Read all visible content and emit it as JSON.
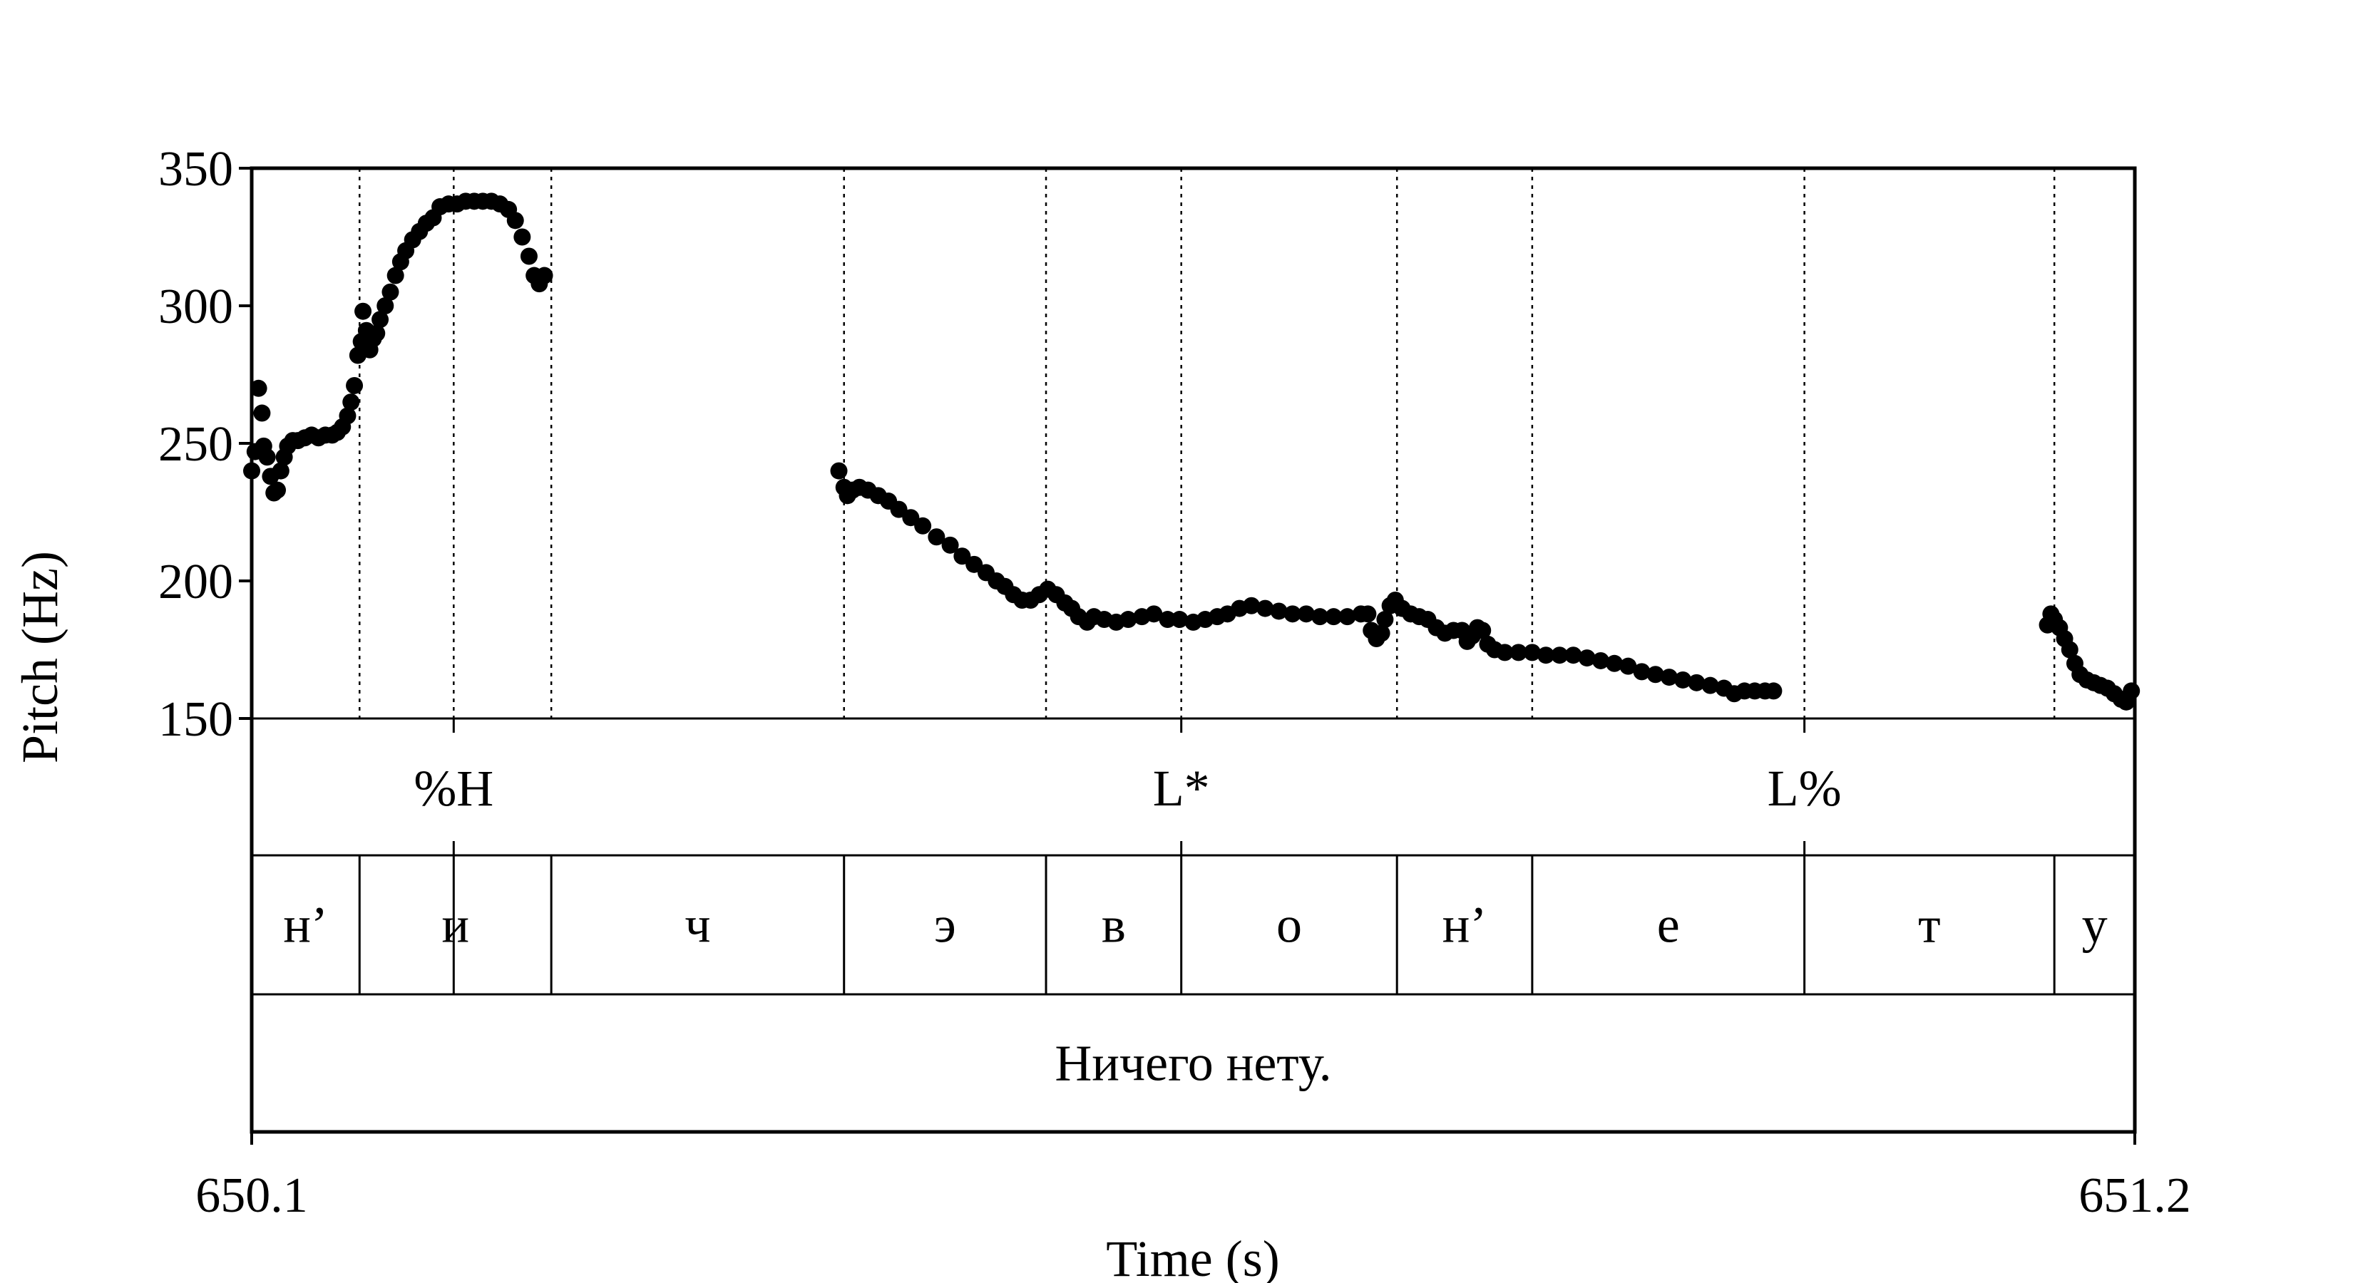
{
  "chart_data": {
    "type": "scatter",
    "xlabel": "Time (s)",
    "ylabel": "Pitch (Hz)",
    "xlim": [
      650.1,
      651.2
    ],
    "ylim": [
      150,
      350
    ],
    "x_tick_labels": [
      "650.1",
      "651.2"
    ],
    "y_ticks": [
      150,
      200,
      250,
      300,
      350
    ],
    "y_tick_labels": [
      "150",
      "200",
      "250",
      "300",
      "350"
    ],
    "grid": "vertical dotted lines at segment boundaries",
    "segment_boundaries": [
      650.163,
      650.218,
      650.275,
      650.446,
      650.564,
      650.643,
      650.769,
      650.848,
      651.007,
      651.153
    ],
    "tone_tier": [
      {
        "label": "%H",
        "time": 650.218
      },
      {
        "label": "L*",
        "time": 650.643
      },
      {
        "label": "L%",
        "time": 651.007
      }
    ],
    "segment_tier": [
      {
        "label": "н’",
        "start": 650.1,
        "end": 650.163
      },
      {
        "label": "и",
        "start": 650.163,
        "end": 650.275
      },
      {
        "label": "ч",
        "start": 650.275,
        "end": 650.446
      },
      {
        "label": "э",
        "start": 650.446,
        "end": 650.564
      },
      {
        "label": "в",
        "start": 650.564,
        "end": 650.643
      },
      {
        "label": "о",
        "start": 650.643,
        "end": 650.769
      },
      {
        "label": "н’",
        "start": 650.769,
        "end": 650.848
      },
      {
        "label": "е",
        "start": 650.848,
        "end": 651.007
      },
      {
        "label": "т",
        "start": 651.007,
        "end": 651.153
      },
      {
        "label": "у",
        "start": 651.153,
        "end": 651.2
      }
    ],
    "sentence_tier": [
      {
        "label": "Ничего нету.",
        "start": 650.1,
        "end": 651.2
      }
    ],
    "series": [
      {
        "points": [
          [
            650.1,
            240
          ],
          [
            650.102,
            247
          ],
          [
            650.104,
            270
          ],
          [
            650.106,
            261
          ],
          [
            650.107,
            249
          ],
          [
            650.109,
            245
          ],
          [
            650.111,
            238
          ],
          [
            650.113,
            232
          ],
          [
            650.115,
            233
          ],
          [
            650.117,
            240
          ],
          [
            650.119,
            245
          ],
          [
            650.121,
            249
          ],
          [
            650.124,
            251
          ],
          [
            650.127,
            251
          ],
          [
            650.131,
            252
          ],
          [
            650.135,
            253
          ],
          [
            650.139,
            252
          ],
          [
            650.143,
            253
          ],
          [
            650.147,
            253
          ],
          [
            650.15,
            254
          ],
          [
            650.153,
            256
          ],
          [
            650.156,
            260
          ],
          [
            650.158,
            265
          ],
          [
            650.16,
            271
          ],
          [
            650.162,
            282
          ],
          [
            650.164,
            287
          ],
          [
            650.165,
            298
          ],
          [
            650.167,
            291
          ],
          [
            650.169,
            284
          ],
          [
            650.171,
            288
          ],
          [
            650.173,
            290
          ],
          [
            650.175,
            295
          ],
          [
            650.178,
            300
          ],
          [
            650.181,
            305
          ],
          [
            650.184,
            311
          ],
          [
            650.187,
            316
          ],
          [
            650.19,
            320
          ],
          [
            650.194,
            324
          ],
          [
            650.198,
            327
          ],
          [
            650.202,
            330
          ],
          [
            650.206,
            332
          ],
          [
            650.21,
            336
          ],
          [
            650.215,
            337
          ],
          [
            650.22,
            337
          ],
          [
            650.225,
            338
          ],
          [
            650.23,
            338
          ],
          [
            650.235,
            338
          ],
          [
            650.24,
            338
          ],
          [
            650.245,
            337
          ],
          [
            650.25,
            335
          ],
          [
            650.254,
            331
          ],
          [
            650.258,
            325
          ],
          [
            650.262,
            318
          ],
          [
            650.265,
            311
          ],
          [
            650.268,
            308
          ],
          [
            650.271,
            311
          ],
          [
            650.443,
            240
          ],
          [
            650.446,
            234
          ],
          [
            650.448,
            231
          ],
          [
            650.451,
            233
          ],
          [
            650.455,
            234
          ],
          [
            650.46,
            233
          ],
          [
            650.466,
            231
          ],
          [
            650.472,
            229
          ],
          [
            650.478,
            226
          ],
          [
            650.485,
            223
          ],
          [
            650.492,
            220
          ],
          [
            650.5,
            216
          ],
          [
            650.508,
            213
          ],
          [
            650.515,
            209
          ],
          [
            650.522,
            206
          ],
          [
            650.529,
            203
          ],
          [
            650.535,
            200
          ],
          [
            650.54,
            198
          ],
          [
            650.545,
            195
          ],
          [
            650.55,
            193
          ],
          [
            650.555,
            193
          ],
          [
            650.56,
            195
          ],
          [
            650.565,
            197
          ],
          [
            650.57,
            195
          ],
          [
            650.575,
            192
          ],
          [
            650.579,
            190
          ],
          [
            650.583,
            187
          ],
          [
            650.588,
            185
          ],
          [
            650.592,
            187
          ],
          [
            650.598,
            186
          ],
          [
            650.605,
            185
          ],
          [
            650.612,
            186
          ],
          [
            650.62,
            187
          ],
          [
            650.627,
            188
          ],
          [
            650.635,
            186
          ],
          [
            650.642,
            186
          ],
          [
            650.65,
            185
          ],
          [
            650.657,
            186
          ],
          [
            650.664,
            187
          ],
          [
            650.67,
            188
          ],
          [
            650.677,
            190
          ],
          [
            650.684,
            191
          ],
          [
            650.692,
            190
          ],
          [
            650.7,
            189
          ],
          [
            650.708,
            188
          ],
          [
            650.716,
            188
          ],
          [
            650.724,
            187
          ],
          [
            650.732,
            187
          ],
          [
            650.74,
            187
          ],
          [
            650.748,
            188
          ],
          [
            650.752,
            188
          ],
          [
            650.754,
            182
          ],
          [
            650.757,
            179
          ],
          [
            650.76,
            181
          ],
          [
            650.762,
            186
          ],
          [
            650.765,
            191
          ],
          [
            650.768,
            193
          ],
          [
            650.772,
            190
          ],
          [
            650.777,
            188
          ],
          [
            650.782,
            187
          ],
          [
            650.787,
            186
          ],
          [
            650.792,
            183
          ],
          [
            650.797,
            181
          ],
          [
            650.802,
            182
          ],
          [
            650.807,
            182
          ],
          [
            650.81,
            178
          ],
          [
            650.813,
            180
          ],
          [
            650.816,
            183
          ],
          [
            650.819,
            182
          ],
          [
            650.822,
            177
          ],
          [
            650.826,
            175
          ],
          [
            650.832,
            174
          ],
          [
            650.84,
            174
          ],
          [
            650.848,
            174
          ],
          [
            650.856,
            173
          ],
          [
            650.864,
            173
          ],
          [
            650.872,
            173
          ],
          [
            650.88,
            172
          ],
          [
            650.888,
            171
          ],
          [
            650.896,
            170
          ],
          [
            650.904,
            169
          ],
          [
            650.912,
            167
          ],
          [
            650.92,
            166
          ],
          [
            650.928,
            165
          ],
          [
            650.936,
            164
          ],
          [
            650.944,
            163
          ],
          [
            650.952,
            162
          ],
          [
            650.96,
            161
          ],
          [
            650.966,
            159
          ],
          [
            650.972,
            160
          ],
          [
            650.978,
            160
          ],
          [
            650.984,
            160
          ],
          [
            650.989,
            160
          ],
          [
            651.149,
            184
          ],
          [
            651.151,
            188
          ],
          [
            651.153,
            186
          ],
          [
            651.156,
            183
          ],
          [
            651.159,
            179
          ],
          [
            651.162,
            175
          ],
          [
            651.165,
            170
          ],
          [
            651.168,
            166
          ],
          [
            651.172,
            164
          ],
          [
            651.176,
            163
          ],
          [
            651.18,
            162
          ],
          [
            651.184,
            161
          ],
          [
            651.188,
            159
          ],
          [
            651.192,
            157
          ],
          [
            651.195,
            156
          ],
          [
            651.198,
            160
          ]
        ]
      }
    ]
  },
  "colors": {
    "background": "#ffffff",
    "ink": "#000000"
  }
}
